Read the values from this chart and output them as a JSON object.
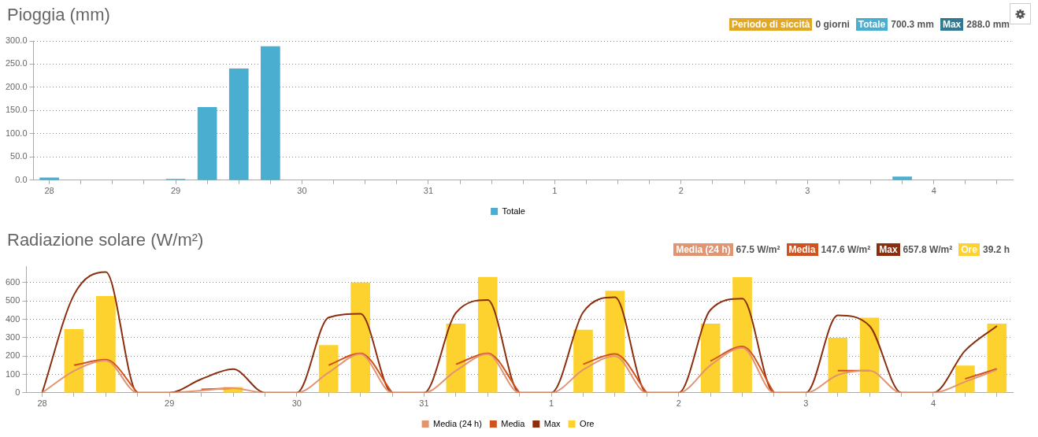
{
  "chart_data": [
    {
      "type": "bar",
      "title": "Pioggia (mm)",
      "annotations": [
        "Periodo di siccità",
        "0 giorni",
        "Totale",
        "700.3 mm",
        "Max",
        "288.0 mm"
      ],
      "categories": [
        "28",
        null,
        null,
        null,
        "29",
        null,
        null,
        null,
        "30",
        null,
        null,
        null,
        "31",
        null,
        null,
        null,
        "1",
        null,
        null,
        null,
        "2",
        null,
        null,
        null,
        "3",
        null,
        null,
        null,
        "4",
        null,
        null
      ],
      "series": [
        {
          "name": "Totale",
          "color": "#4aaed0",
          "values": [
            5,
            null,
            null,
            null,
            2,
            157,
            240,
            288,
            null,
            null,
            null,
            null,
            null,
            null,
            null,
            null,
            null,
            null,
            null,
            null,
            null,
            null,
            null,
            null,
            null,
            null,
            null,
            7,
            null,
            null,
            null
          ]
        }
      ],
      "ylim": [
        0,
        300
      ],
      "yticks": [
        {
          "value": 0,
          "label": "0.0"
        },
        {
          "value": 50,
          "label": "50.0"
        },
        {
          "value": 100,
          "label": "100.0"
        },
        {
          "value": 150,
          "label": "150.0"
        },
        {
          "value": 200,
          "label": "200.0"
        },
        {
          "value": 250,
          "label": "250.0"
        },
        {
          "value": 300,
          "label": "300.0"
        }
      ],
      "grid": "y",
      "legend": "bottom"
    },
    {
      "type": "line",
      "title": "Radiazione solare (W/m²)",
      "annotations": [
        "Media (24 h)",
        "67.5 W/m²",
        "Media",
        "147.6 W/m²",
        "Max",
        "657.8 W/m²",
        "Ore",
        "39.2 h"
      ],
      "categories": [
        "28",
        null,
        null,
        null,
        "29",
        null,
        null,
        null,
        "30",
        null,
        null,
        null,
        "31",
        null,
        null,
        null,
        "1",
        null,
        null,
        null,
        "2",
        null,
        null,
        null,
        "3",
        null,
        null,
        null,
        "4",
        null,
        null
      ],
      "series": [
        {
          "name": "Media (24 h)",
          "color": "#e29470",
          "values": [
            0,
            119,
            175,
            0,
            0,
            12,
            25,
            0,
            0,
            110,
            210,
            0,
            0,
            120,
            210,
            0,
            0,
            125,
            200,
            0,
            0,
            150,
            245,
            0,
            0,
            97,
            120,
            0,
            0,
            60,
            125
          ]
        },
        {
          "name": "Media",
          "color": "#d2521e",
          "values": [
            null,
            150,
            180,
            0,
            null,
            18,
            25,
            null,
            null,
            150,
            215,
            0,
            null,
            155,
            215,
            0,
            null,
            156,
            212,
            0,
            null,
            173,
            252,
            0,
            null,
            120,
            120,
            null,
            null,
            76,
            130
          ]
        },
        {
          "name": "Max",
          "color": "#8b2e0e",
          "values": [
            0,
            534,
            658,
            0,
            0,
            74,
            129,
            0,
            0,
            410,
            430,
            0,
            0,
            435,
            505,
            0,
            0,
            439,
            520,
            0,
            0,
            452,
            513,
            0,
            0,
            422,
            364,
            0,
            0,
            229,
            364
          ]
        },
        {
          "name": "Ore",
          "type": "bar",
          "color": "#fdd22e",
          "values": [
            null,
            345,
            525,
            null,
            null,
            null,
            30,
            null,
            null,
            258,
            600,
            null,
            null,
            375,
            630,
            null,
            null,
            342,
            554,
            null,
            null,
            375,
            629,
            null,
            null,
            298,
            407,
            null,
            null,
            147,
            375
          ]
        }
      ],
      "ylim": [
        0,
        690
      ],
      "yticks": [
        0,
        100,
        200,
        300,
        400,
        500,
        600
      ],
      "grid": "y",
      "legend": "bottom",
      "marker": "none",
      "line_style": "solid"
    }
  ]
}
